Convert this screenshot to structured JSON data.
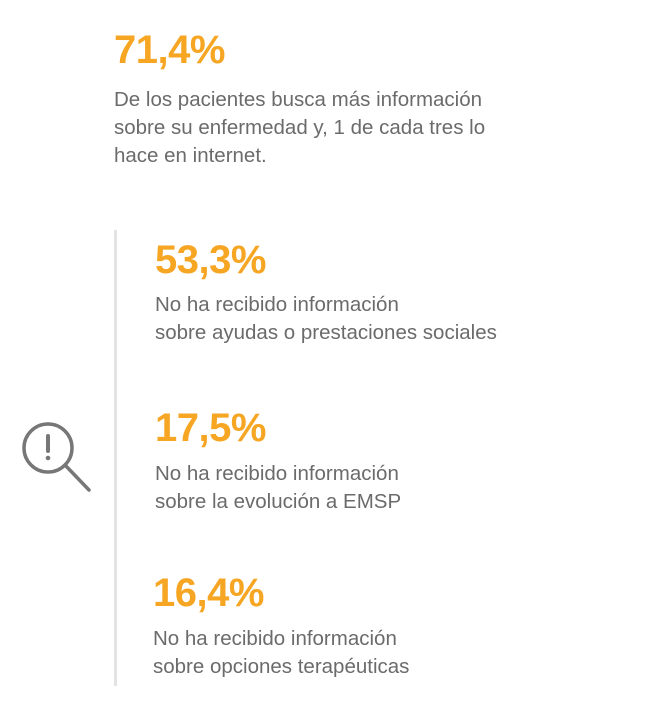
{
  "header_stat": {
    "value": "71,4%",
    "description_lines": [
      "De los pacientes busca más información",
      "sobre su enfermedad y, 1 de cada tres lo",
      "hace en internet."
    ]
  },
  "items": [
    {
      "value": "53,3%",
      "lines": [
        "No ha recibido información",
        "sobre ayudas o prestaciones sociales"
      ]
    },
    {
      "value": "17,5%",
      "lines": [
        "No ha recibido información",
        "sobre la evolución a EMSP"
      ]
    },
    {
      "value": "16,4%",
      "lines": [
        "No ha recibido información",
        "sobre opciones terapéuticas"
      ]
    }
  ],
  "icon": "search-alert-icon",
  "colors": {
    "accent": "#F6A623",
    "text": "#6b6b6b",
    "divider": "#e3e3e3"
  }
}
